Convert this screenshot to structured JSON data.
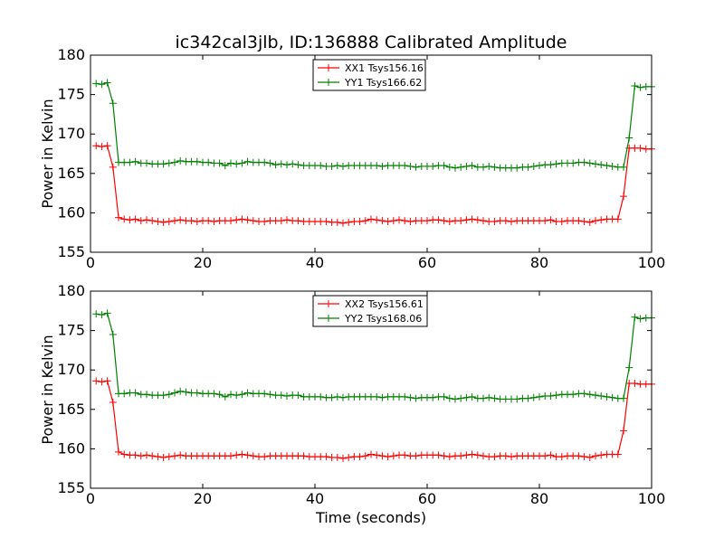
{
  "title": "ic342cal3jlb, ID:136888 Calibrated Amplitude",
  "chart_data": [
    {
      "type": "line",
      "ylabel": "Power in Kelvin",
      "xlabel": "",
      "xlim": [
        0,
        100
      ],
      "ylim": [
        155,
        180
      ],
      "xticks": [
        "0",
        "20",
        "40",
        "60",
        "80",
        "100"
      ],
      "yticks": [
        "155",
        "160",
        "165",
        "170",
        "175",
        "180"
      ],
      "legend_placement": "top-center",
      "grid": false,
      "x": [
        1,
        2,
        3,
        4,
        5,
        6,
        7,
        8,
        9,
        10,
        11,
        12,
        13,
        14,
        15,
        16,
        17,
        18,
        19,
        20,
        21,
        22,
        23,
        24,
        25,
        26,
        27,
        28,
        29,
        30,
        31,
        32,
        33,
        34,
        35,
        36,
        37,
        38,
        39,
        40,
        41,
        42,
        43,
        44,
        45,
        46,
        47,
        48,
        49,
        50,
        51,
        52,
        53,
        54,
        55,
        56,
        57,
        58,
        59,
        60,
        61,
        62,
        63,
        64,
        65,
        66,
        67,
        68,
        69,
        70,
        71,
        72,
        73,
        74,
        75,
        76,
        77,
        78,
        79,
        80,
        81,
        82,
        83,
        84,
        85,
        86,
        87,
        88,
        89,
        90,
        91,
        92,
        93,
        94,
        95,
        96,
        97,
        98,
        99,
        100
      ],
      "series": [
        {
          "name": "XX1 Tsys156.16",
          "color": "#ff0000",
          "values": [
            168.5,
            168.4,
            168.5,
            165.8,
            159.4,
            159.2,
            159.1,
            159.2,
            159.0,
            159.1,
            159.0,
            158.9,
            158.8,
            158.9,
            159.0,
            159.1,
            159.0,
            159.0,
            158.9,
            159.0,
            159.0,
            158.9,
            159.0,
            159.0,
            159.0,
            159.1,
            159.2,
            159.1,
            159.0,
            158.9,
            158.9,
            159.0,
            159.0,
            159.0,
            159.1,
            159.0,
            159.0,
            158.9,
            158.9,
            158.9,
            158.9,
            158.9,
            158.8,
            158.8,
            158.7,
            158.8,
            158.9,
            158.9,
            159.0,
            159.2,
            159.1,
            159.0,
            158.9,
            159.0,
            159.1,
            159.0,
            158.9,
            159.0,
            159.0,
            159.0,
            159.1,
            159.1,
            159.0,
            158.9,
            159.0,
            159.0,
            159.1,
            159.2,
            159.1,
            159.0,
            158.9,
            158.9,
            159.0,
            159.0,
            158.9,
            159.0,
            159.0,
            159.0,
            159.0,
            159.0,
            159.0,
            159.1,
            158.9,
            158.9,
            159.0,
            159.0,
            159.0,
            158.9,
            158.8,
            159.0,
            159.1,
            159.2,
            159.2,
            159.2,
            162.1,
            168.2,
            168.2,
            168.2,
            168.1,
            168.1
          ]
        },
        {
          "name": "YY1 Tsys166.62",
          "color": "#008000",
          "values": [
            176.4,
            176.3,
            176.5,
            173.9,
            166.4,
            166.4,
            166.4,
            166.5,
            166.3,
            166.3,
            166.2,
            166.2,
            166.2,
            166.3,
            166.4,
            166.6,
            166.5,
            166.5,
            166.5,
            166.4,
            166.4,
            166.3,
            166.3,
            166.0,
            166.3,
            166.2,
            166.3,
            166.5,
            166.4,
            166.4,
            166.4,
            166.3,
            166.1,
            166.2,
            166.1,
            166.2,
            166.1,
            166.0,
            166.0,
            166.0,
            166.0,
            165.9,
            165.9,
            166.0,
            165.9,
            166.0,
            166.0,
            166.0,
            166.0,
            166.0,
            166.0,
            165.9,
            166.0,
            166.0,
            166.0,
            166.0,
            165.9,
            165.8,
            165.9,
            165.9,
            165.9,
            166.0,
            166.0,
            165.8,
            165.7,
            165.8,
            165.9,
            166.0,
            165.8,
            165.8,
            165.9,
            165.8,
            165.7,
            165.7,
            165.7,
            165.7,
            165.8,
            165.8,
            165.9,
            166.0,
            166.1,
            166.1,
            166.2,
            166.3,
            166.3,
            166.3,
            166.4,
            166.4,
            166.3,
            166.2,
            166.1,
            166.0,
            165.9,
            165.8,
            165.8,
            169.5,
            176.1,
            175.9,
            176.0,
            176.0
          ]
        }
      ]
    },
    {
      "type": "line",
      "ylabel": "Power in Kelvin",
      "xlabel": "Time (seconds)",
      "xlim": [
        0,
        100
      ],
      "ylim": [
        155,
        180
      ],
      "xticks": [
        "0",
        "20",
        "40",
        "60",
        "80",
        "100"
      ],
      "yticks": [
        "155",
        "160",
        "165",
        "170",
        "175",
        "180"
      ],
      "legend_placement": "top-center",
      "grid": false,
      "x": [
        1,
        2,
        3,
        4,
        5,
        6,
        7,
        8,
        9,
        10,
        11,
        12,
        13,
        14,
        15,
        16,
        17,
        18,
        19,
        20,
        21,
        22,
        23,
        24,
        25,
        26,
        27,
        28,
        29,
        30,
        31,
        32,
        33,
        34,
        35,
        36,
        37,
        38,
        39,
        40,
        41,
        42,
        43,
        44,
        45,
        46,
        47,
        48,
        49,
        50,
        51,
        52,
        53,
        54,
        55,
        56,
        57,
        58,
        59,
        60,
        61,
        62,
        63,
        64,
        65,
        66,
        67,
        68,
        69,
        70,
        71,
        72,
        73,
        74,
        75,
        76,
        77,
        78,
        79,
        80,
        81,
        82,
        83,
        84,
        85,
        86,
        87,
        88,
        89,
        90,
        91,
        92,
        93,
        94,
        95,
        96,
        97,
        98,
        99,
        100
      ],
      "series": [
        {
          "name": "XX2 Tsys156.61",
          "color": "#ff0000",
          "values": [
            168.6,
            168.5,
            168.6,
            165.9,
            159.6,
            159.3,
            159.2,
            159.2,
            159.1,
            159.2,
            159.1,
            159.0,
            158.9,
            159.0,
            159.1,
            159.2,
            159.1,
            159.1,
            159.1,
            159.1,
            159.1,
            159.1,
            159.1,
            159.1,
            159.1,
            159.2,
            159.3,
            159.2,
            159.1,
            159.0,
            159.0,
            159.1,
            159.1,
            159.1,
            159.1,
            159.1,
            159.1,
            159.1,
            159.0,
            159.0,
            159.0,
            159.0,
            158.9,
            158.9,
            158.8,
            158.9,
            159.0,
            159.0,
            159.1,
            159.3,
            159.2,
            159.1,
            159.0,
            159.1,
            159.2,
            159.2,
            159.1,
            159.1,
            159.2,
            159.2,
            159.2,
            159.2,
            159.1,
            159.0,
            159.1,
            159.1,
            159.2,
            159.3,
            159.2,
            159.1,
            159.0,
            159.0,
            159.1,
            159.1,
            159.0,
            159.1,
            159.1,
            159.1,
            159.1,
            159.1,
            159.1,
            159.2,
            159.0,
            159.0,
            159.1,
            159.1,
            159.1,
            159.0,
            158.9,
            159.1,
            159.2,
            159.3,
            159.3,
            159.3,
            162.3,
            168.3,
            168.3,
            168.2,
            168.2,
            168.2
          ]
        },
        {
          "name": "YY2 Tsys168.06",
          "color": "#008000",
          "values": [
            177.1,
            177.0,
            177.2,
            174.5,
            167.0,
            167.0,
            167.1,
            167.1,
            166.9,
            166.9,
            166.8,
            166.8,
            166.8,
            166.9,
            167.1,
            167.3,
            167.2,
            167.1,
            167.1,
            167.0,
            167.0,
            167.0,
            166.9,
            166.6,
            166.9,
            166.8,
            166.9,
            167.1,
            167.0,
            167.0,
            167.0,
            166.9,
            166.8,
            166.8,
            166.7,
            166.8,
            166.8,
            166.6,
            166.6,
            166.6,
            166.6,
            166.5,
            166.5,
            166.6,
            166.5,
            166.6,
            166.6,
            166.6,
            166.6,
            166.6,
            166.6,
            166.5,
            166.6,
            166.6,
            166.6,
            166.6,
            166.5,
            166.4,
            166.5,
            166.5,
            166.5,
            166.6,
            166.6,
            166.4,
            166.3,
            166.4,
            166.5,
            166.6,
            166.4,
            166.4,
            166.5,
            166.4,
            166.3,
            166.3,
            166.3,
            166.3,
            166.4,
            166.4,
            166.5,
            166.6,
            166.7,
            166.7,
            166.8,
            166.9,
            166.9,
            166.9,
            167.0,
            167.0,
            166.9,
            166.8,
            166.7,
            166.6,
            166.5,
            166.4,
            166.4,
            170.3,
            176.7,
            176.5,
            176.6,
            176.6
          ]
        }
      ]
    }
  ]
}
